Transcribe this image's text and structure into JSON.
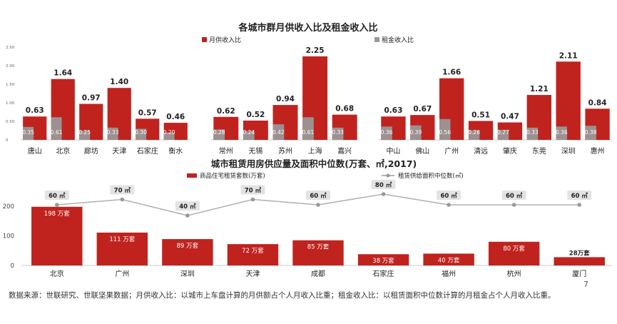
{
  "colors": {
    "red": "#c0231e",
    "gray": "#9a9a9a",
    "line": "#b0b0b0",
    "text": "#222222"
  },
  "chart_data": [
    {
      "type": "bar",
      "title": "各城市群月供收入比及租金收入比",
      "legend": [
        "月供收入比",
        "租金收入比"
      ],
      "legend_position": "top-center",
      "y_ticks": [
        "0",
        "0.50",
        "1.00",
        "1.50",
        "2.00",
        "2.50"
      ],
      "ylim": [
        0,
        2.5
      ],
      "groups": [
        {
          "categories": [
            "唐山",
            "北京",
            "廊坊",
            "天津",
            "石家庄",
            "衡水"
          ]
        },
        {
          "categories": [
            "常州",
            "无锡",
            "苏州",
            "上海",
            "嘉兴"
          ]
        },
        {
          "categories": [
            "中山",
            "佛山",
            "广州",
            "清远",
            "肇庆",
            "东莞",
            "深圳",
            "惠州"
          ]
        }
      ],
      "series": [
        {
          "name": "月供收入比",
          "values": [
            0.63,
            1.64,
            0.97,
            1.4,
            0.57,
            0.46,
            0.62,
            0.52,
            0.94,
            2.25,
            0.68,
            0.63,
            0.67,
            1.66,
            0.51,
            0.47,
            1.21,
            2.11,
            0.84
          ],
          "labels": [
            "0.63",
            "1.64",
            "0.97",
            "1.40",
            "0.57",
            "0.46",
            "0.62",
            "0.52",
            "0.94",
            "2.25",
            "0.68",
            "0.63",
            "0.67",
            "1.66",
            "0.51",
            "0.47",
            "1.21",
            "2.11",
            "0.84"
          ]
        },
        {
          "name": "租金收入比",
          "values": [
            0.35,
            0.61,
            0.25,
            0.33,
            0.3,
            0.2,
            0.28,
            0.24,
            0.42,
            0.61,
            0.33,
            0.36,
            0.39,
            0.56,
            0.26,
            0.27,
            0.33,
            0.36,
            0.38
          ],
          "labels": [
            "0.35",
            "0.61",
            "0.25",
            "0.33",
            "0.30",
            "0.20",
            "0.28",
            "0.24",
            "0.42",
            "0.61",
            "0.33",
            "0.36",
            "0.39",
            "0.56",
            "0.26",
            "0.27",
            "0.33",
            "0.36",
            "0.38"
          ]
        }
      ]
    },
    {
      "type": "bar",
      "title": "城市租赁用房供应量及面积中位数(万套、㎡,2017)",
      "legend": [
        "商品住宅租赁套数(万套)",
        "租赁供给面积中位数(㎡)"
      ],
      "legend_position": "top-center",
      "categories": [
        "北京",
        "广州",
        "深圳",
        "天津",
        "成都",
        "石家庄",
        "福州",
        "杭州",
        "厦门"
      ],
      "y_ticks": [
        "0",
        "100",
        "200"
      ],
      "ylim": [
        0,
        260
      ],
      "series": [
        {
          "name": "商品住宅租赁套数(万套)",
          "type": "bar",
          "values": [
            198,
            111,
            89,
            72,
            85,
            38,
            40,
            80,
            28
          ],
          "labels": [
            "198 万套",
            "111 万套",
            "89 万套",
            "72 万套",
            "85 万套",
            "38 万套",
            "40 万套",
            "80 万套",
            "28万套"
          ]
        },
        {
          "name": "租赁供给面积中位数(㎡)",
          "type": "line",
          "values": [
            60,
            70,
            40,
            70,
            60,
            80,
            60,
            60,
            60
          ],
          "labels": [
            "60 ㎡",
            "70 ㎡",
            "40 ㎡",
            "70 ㎡",
            "60 ㎡",
            "80 ㎡",
            "60 ㎡",
            "60 ㎡",
            "60 ㎡"
          ]
        }
      ]
    }
  ],
  "footer": {
    "source": "数据来源：世联研究、世联坚果数据；月供收入比：以城市上车盘计算的月供额占个人月收入比重；租金收入比：以租赁面积中位数计算的月租金占个人月收入比重。",
    "page": "7"
  }
}
